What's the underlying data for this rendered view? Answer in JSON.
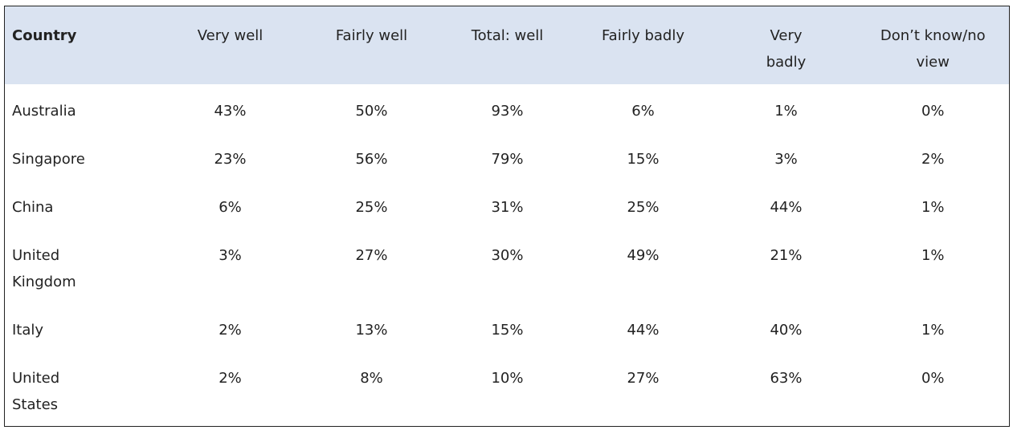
{
  "table": {
    "header": [
      "Country",
      "Very well",
      "Fairly well",
      "Total: well",
      "Fairly badly",
      "Very badly",
      "Don’t know/no view"
    ],
    "rows": [
      [
        "Australia",
        "43%",
        "50%",
        "93%",
        "6%",
        "1%",
        "0%"
      ],
      [
        "Singapore",
        "23%",
        "56%",
        "79%",
        "15%",
        "3%",
        "2%"
      ],
      [
        "China",
        "6%",
        "25%",
        "31%",
        "25%",
        "44%",
        "1%"
      ],
      [
        "United Kingdom",
        "3%",
        "27%",
        "30%",
        "49%",
        "21%",
        "1%"
      ],
      [
        "Italy",
        "2%",
        "13%",
        "15%",
        "44%",
        "40%",
        "1%"
      ],
      [
        "United States",
        "2%",
        "8%",
        "10%",
        "27%",
        "63%",
        "0%"
      ]
    ]
  }
}
